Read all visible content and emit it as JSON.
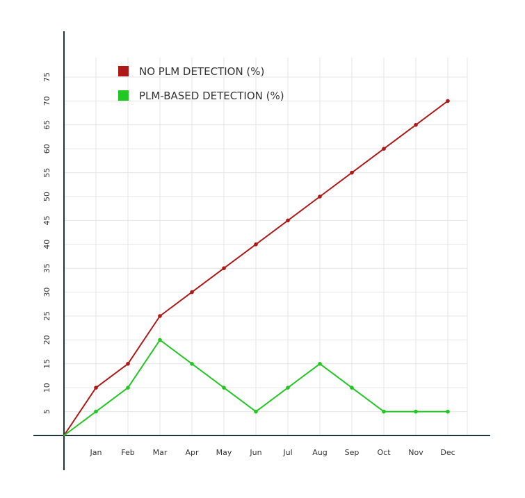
{
  "chart_data": {
    "type": "line",
    "title": "",
    "xlabel": "",
    "ylabel": "",
    "categories": [
      "",
      "Jan",
      "Feb",
      "Mar",
      "Apr",
      "May",
      "Jun",
      "Jul",
      "Aug",
      "Sep",
      "Oct",
      "Nov",
      "Dec"
    ],
    "y_ticks": [
      5,
      10,
      15,
      20,
      25,
      30,
      35,
      40,
      45,
      50,
      55,
      60,
      65,
      70,
      75
    ],
    "ylim": [
      0,
      75
    ],
    "grid": true,
    "legend_position": "top-left",
    "series": [
      {
        "name": "NO PLM DETECTION (%)",
        "color": "#b01818",
        "values": [
          0,
          10,
          15,
          25,
          30,
          35,
          40,
          45,
          50,
          55,
          60,
          65,
          70
        ]
      },
      {
        "name": "PLM-BASED DETECTION (%)",
        "color": "#22c722",
        "values": [
          0,
          5,
          10,
          20,
          15,
          10,
          5,
          10,
          15,
          10,
          5,
          5,
          5
        ]
      }
    ]
  }
}
